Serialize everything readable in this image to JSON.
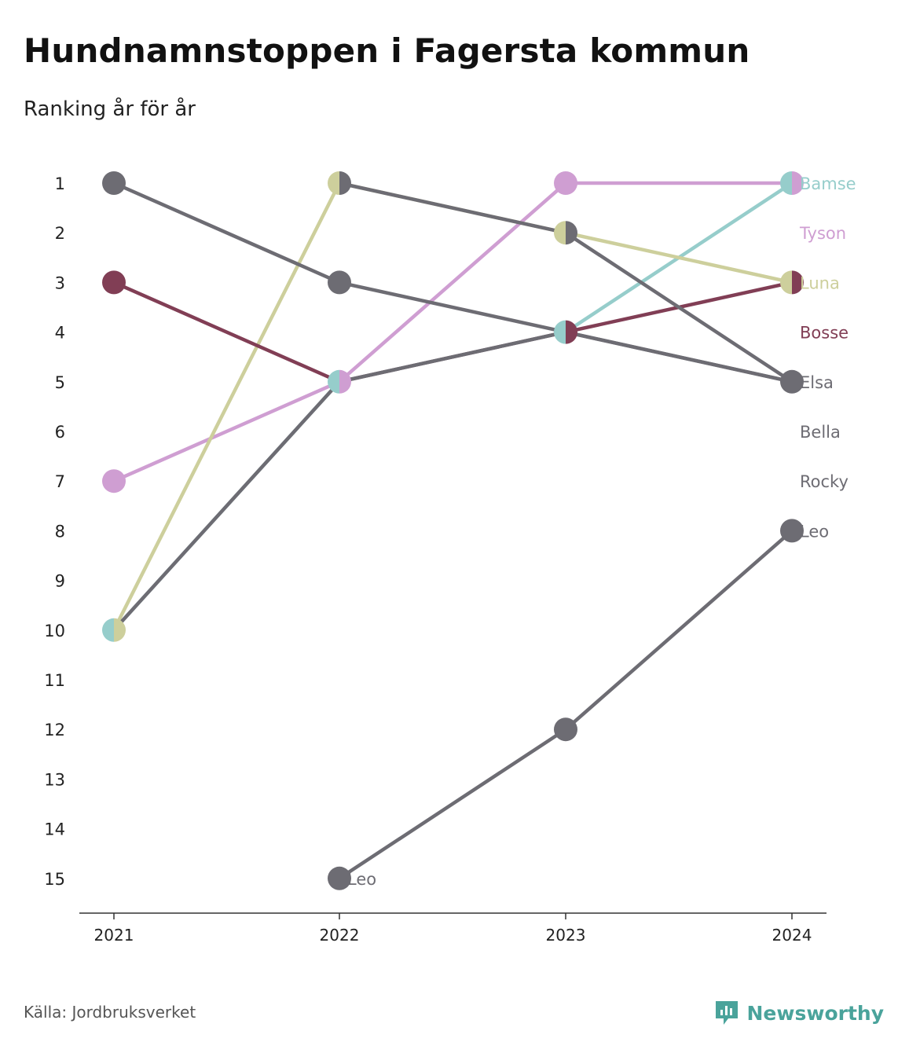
{
  "title": "Hundnamnstoppen i Fagersta kommun",
  "subtitle": "Ranking år för år",
  "source": "Källa: Jordbruksverket",
  "brand": "Newsworthy",
  "chart_data": {
    "type": "line",
    "chart_kind": "bump",
    "x": [
      "2021",
      "2022",
      "2023",
      "2024"
    ],
    "ylim": [
      15,
      1
    ],
    "y_ticks": [
      "1",
      "2",
      "3",
      "4",
      "5",
      "6",
      "7",
      "8",
      "9",
      "10",
      "11",
      "12",
      "13",
      "14",
      "15"
    ],
    "y_inverted": true,
    "grid": false,
    "series": [
      {
        "name": "Bamse",
        "color": "#96cdcb",
        "values": [
          10,
          5,
          4,
          1
        ]
      },
      {
        "name": "Tyson",
        "color": "#cf9ed2",
        "values": [
          7,
          5,
          1,
          1
        ]
      },
      {
        "name": "Luna",
        "color": "#cdcf9c",
        "values": [
          10,
          1,
          2,
          3
        ]
      },
      {
        "name": "Bosse",
        "color": "#813e55",
        "values": [
          3,
          5,
          4,
          3
        ]
      },
      {
        "name": "Elsa",
        "color": "#6d6c73",
        "values": [
          1,
          3,
          4,
          5
        ]
      },
      {
        "name": "Bella",
        "color": "#6d6c73",
        "values": [
          null,
          1,
          2,
          5
        ]
      },
      {
        "name": "Rocky",
        "color": "#6d6c73",
        "values": [
          10,
          5,
          4,
          5
        ]
      },
      {
        "name": "Leo",
        "color": "#6d6c73",
        "values": [
          null,
          15,
          12,
          8
        ]
      }
    ],
    "end_labels": [
      "Bamse",
      "Tyson",
      "Luna",
      "Bosse",
      "Elsa",
      "Bella",
      "Rocky",
      "Leo"
    ],
    "start_label": {
      "text": "Leo",
      "year": "2022",
      "rank": 15
    }
  }
}
